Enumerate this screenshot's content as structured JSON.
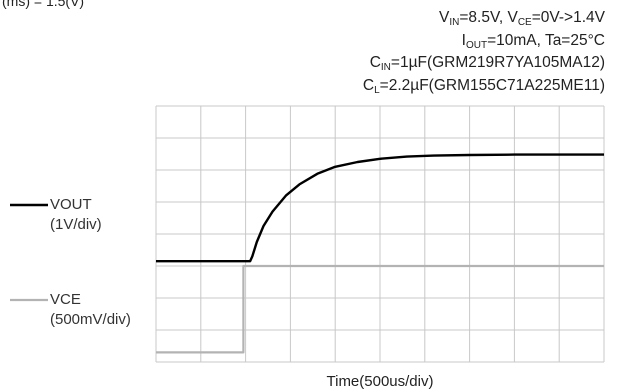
{
  "header_fragment": "(ms) = 1.5(V)",
  "conditions": {
    "line1": {
      "a": "V",
      "a_sub": "IN",
      "b": "=8.5V, V",
      "b_sub": "CE",
      "c": "=0V->1.4V"
    },
    "line2": {
      "a": "I",
      "a_sub": "OUT",
      "b": "=10mA,  Ta=25°C"
    },
    "line3": {
      "a": "C",
      "a_sub": "IN",
      "b": "=1µF(GRM219R7YA105MA12)"
    },
    "line4": {
      "a": "C",
      "a_sub": "L",
      "b": "=2.2µF(GRM155C71A225ME11)"
    }
  },
  "chart_data": {
    "type": "line",
    "grid": true,
    "grid_divisions": {
      "x": 10,
      "y": 8
    },
    "xlabel": "Time(500us/div)",
    "xlim": [
      0,
      10
    ],
    "ylim": [
      0,
      8
    ],
    "legend": [
      {
        "name": "VOUT",
        "scale": "(1V/div)",
        "color": "#000000"
      },
      {
        "name": "VCE",
        "scale": "(500mV/div)",
        "color": "#b3b3b3"
      }
    ],
    "series": [
      {
        "name": "VOUT",
        "color": "#000000",
        "x": [
          0,
          2.1,
          2.15,
          2.25,
          2.4,
          2.6,
          2.9,
          3.2,
          3.6,
          4.0,
          4.5,
          5.0,
          5.6,
          6.2,
          7.0,
          8.0,
          10.0
        ],
        "y": [
          3.15,
          3.15,
          3.3,
          3.75,
          4.25,
          4.7,
          5.2,
          5.55,
          5.88,
          6.1,
          6.25,
          6.35,
          6.42,
          6.45,
          6.47,
          6.48,
          6.48
        ]
      },
      {
        "name": "VCE",
        "color": "#b3b3b3",
        "x": [
          0,
          1.95,
          1.95,
          10.0
        ],
        "y": [
          0.3,
          0.3,
          3.0,
          3.0
        ]
      }
    ]
  }
}
